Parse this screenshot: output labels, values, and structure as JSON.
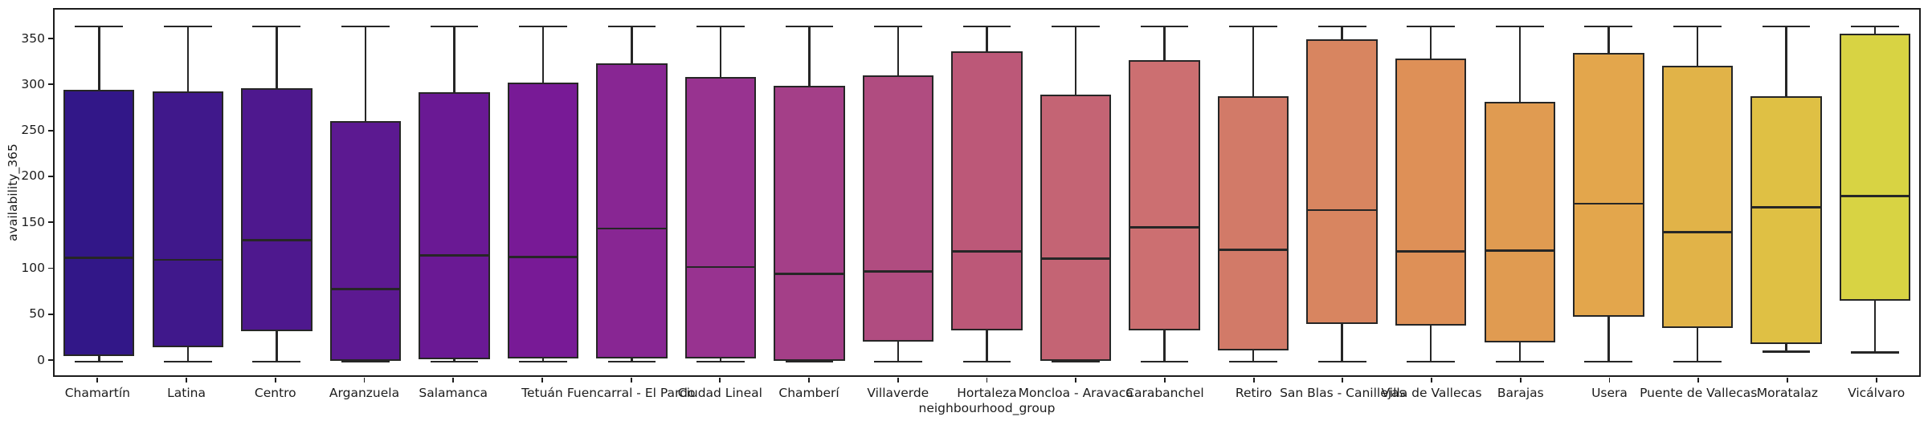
{
  "figure": {
    "background": "#ffffff",
    "text_color": "#1c1c1c",
    "line_color": "#262626"
  },
  "chart_data": {
    "type": "boxplot",
    "title": "",
    "xlabel": "neighbourhood_group",
    "ylabel": "availability_365",
    "ylim": [
      -18.25,
      383.25
    ],
    "yticks": [
      0,
      50,
      100,
      150,
      200,
      250,
      300,
      350
    ],
    "grid": false,
    "legend": "none",
    "categories": [
      "Chamartín",
      "Latina",
      "Centro",
      "Arganzuela",
      "Salamanca",
      "Tetuán",
      "Fuencarral - El Pardo",
      "Ciudad Lineal",
      "Chamberí",
      "Villaverde",
      "Hortaleza",
      "Moncloa - Aravaca",
      "Carabanchel",
      "Retiro",
      "San Blas - Canillejas",
      "Villa de Vallecas",
      "Barajas",
      "Usera",
      "Puente de Vallecas",
      "Moratalaz",
      "Vicálvaro"
    ],
    "series": [
      {
        "name": "Chamartín",
        "whislo": 0,
        "q1": 6,
        "med": 113,
        "q3": 296,
        "whishi": 365,
        "color": "#321788"
      },
      {
        "name": "Latina",
        "whislo": 0,
        "q1": 16,
        "med": 111,
        "q3": 294,
        "whishi": 365,
        "color": "#40188b"
      },
      {
        "name": "Centro",
        "whislo": 0,
        "q1": 33,
        "med": 132,
        "q3": 298,
        "whishi": 365,
        "color": "#4e188e"
      },
      {
        "name": "Arganzuela",
        "whislo": 0,
        "q1": 1,
        "med": 79,
        "q3": 262,
        "whishi": 365,
        "color": "#5c1991"
      },
      {
        "name": "Salamanca",
        "whislo": 0,
        "q1": 3,
        "med": 116,
        "q3": 293,
        "whishi": 365,
        "color": "#6a1994"
      },
      {
        "name": "Tetuán",
        "whislo": 0,
        "q1": 4,
        "med": 114,
        "q3": 304,
        "whishi": 365,
        "color": "#781a96"
      },
      {
        "name": "Fuencarral - El Pardo",
        "whislo": 0,
        "q1": 4,
        "med": 145,
        "q3": 325,
        "whishi": 365,
        "color": "#882693"
      },
      {
        "name": "Ciudad Lineal",
        "whislo": 0,
        "q1": 4,
        "med": 103,
        "q3": 310,
        "whishi": 365,
        "color": "#983390"
      },
      {
        "name": "Chamberí",
        "whislo": 0,
        "q1": 1,
        "med": 96,
        "q3": 300,
        "whishi": 365,
        "color": "#a43f88"
      },
      {
        "name": "Villaverde",
        "whislo": 0,
        "q1": 22,
        "med": 98,
        "q3": 312,
        "whishi": 365,
        "color": "#b04c80"
      },
      {
        "name": "Hortaleza",
        "whislo": 0,
        "q1": 34,
        "med": 120,
        "q3": 338,
        "whishi": 365,
        "color": "#bc5878"
      },
      {
        "name": "Moncloa - Aravaca",
        "whislo": 0,
        "q1": 1,
        "med": 112,
        "q3": 291,
        "whishi": 365,
        "color": "#c46474"
      },
      {
        "name": "Carabanchel",
        "whislo": 0,
        "q1": 34,
        "med": 146,
        "q3": 328,
        "whishi": 365,
        "color": "#cc6f71"
      },
      {
        "name": "Retiro",
        "whislo": 0,
        "q1": 12,
        "med": 122,
        "q3": 289,
        "whishi": 365,
        "color": "#d27a68"
      },
      {
        "name": "San Blas - Canillejas",
        "whislo": 0,
        "q1": 41,
        "med": 165,
        "q3": 351,
        "whishi": 365,
        "color": "#d88560"
      },
      {
        "name": "Villa de Vallecas",
        "whislo": 0,
        "q1": 39,
        "med": 120,
        "q3": 330,
        "whishi": 365,
        "color": "#de9057"
      },
      {
        "name": "Barajas",
        "whislo": 0,
        "q1": 21,
        "med": 121,
        "q3": 283,
        "whishi": 365,
        "color": "#e09b51"
      },
      {
        "name": "Usera",
        "whislo": 0,
        "q1": 49,
        "med": 172,
        "q3": 336,
        "whishi": 365,
        "color": "#e3a64c"
      },
      {
        "name": "Puente de Vallecas",
        "whislo": 0,
        "q1": 37,
        "med": 141,
        "q3": 322,
        "whishi": 365,
        "color": "#e1b348"
      },
      {
        "name": "Moratalaz",
        "whislo": 11,
        "q1": 19,
        "med": 168,
        "q3": 289,
        "whishi": 365,
        "color": "#dfc044"
      },
      {
        "name": "Vicálvaro",
        "whislo": 10,
        "q1": 66,
        "med": 180,
        "q3": 357,
        "whishi": 365,
        "color": "#d8d343"
      }
    ]
  }
}
